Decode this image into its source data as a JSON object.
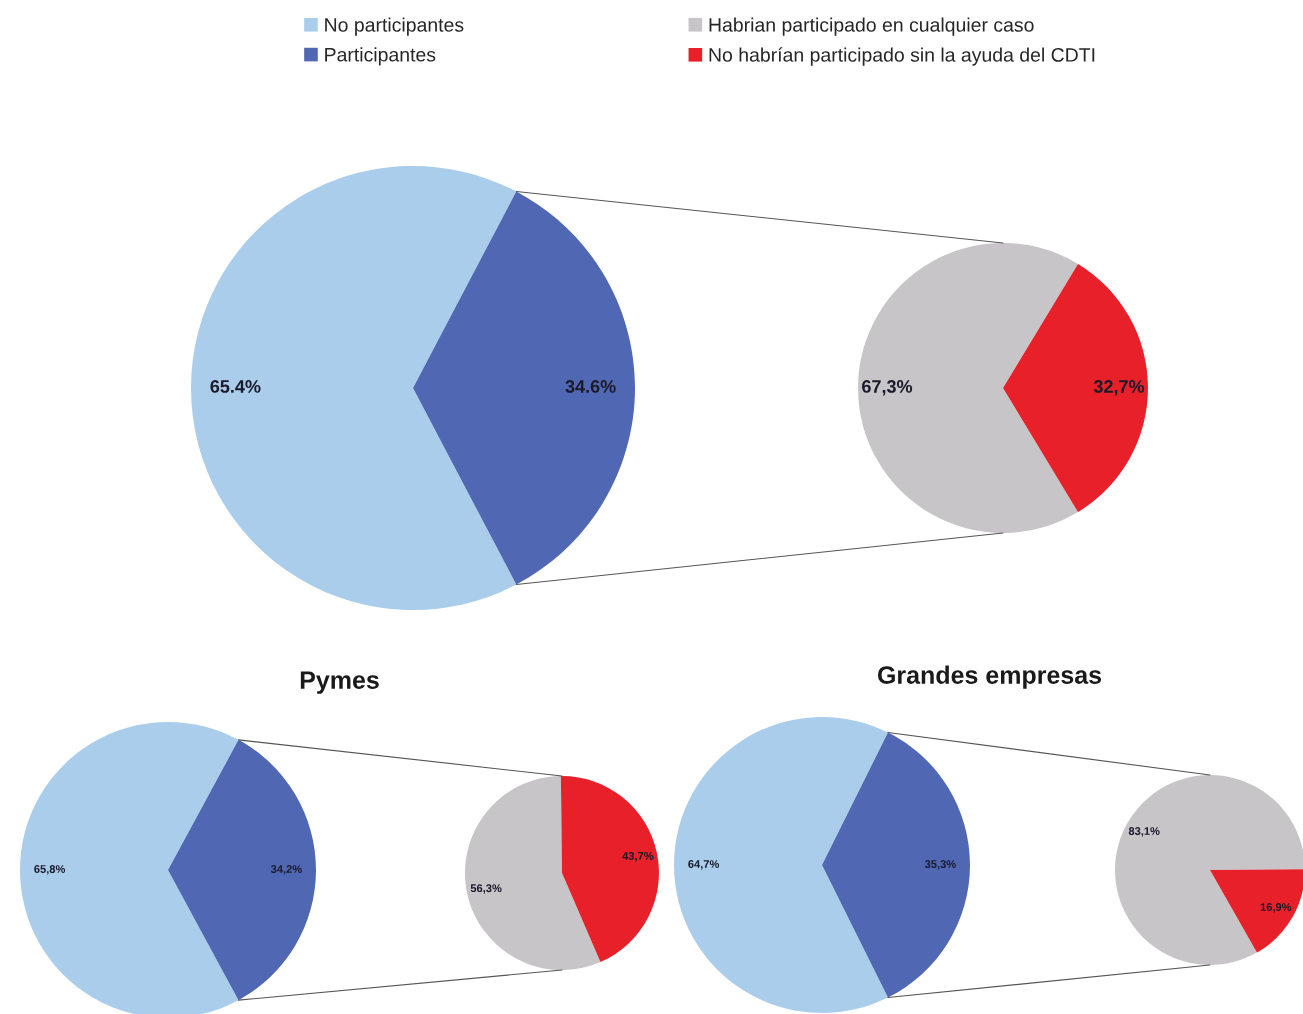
{
  "chart_data": [
    {
      "type": "pie",
      "categories": [
        "No participantes",
        "Participantes"
      ],
      "values": [
        65.4,
        34.6
      ],
      "colors": [
        "#a9cdeb",
        "#5068b4"
      ],
      "value_labels": [
        "65.4%",
        "34.6%"
      ],
      "legend": "top"
    },
    {
      "type": "pie",
      "categories": [
        "Habrian participado en cualquier caso",
        "No habrían participado sin la ayuda del CDTI"
      ],
      "values": [
        67.3,
        32.7
      ],
      "colors": [
        "#c8c5c8",
        "#e8202a"
      ],
      "value_labels": [
        "67,3%",
        "32,7%"
      ],
      "legend": "top"
    },
    {
      "type": "pie",
      "title": "Pymes",
      "categories": [
        null,
        null
      ],
      "values": [
        65.8,
        34.2
      ],
      "colors": [
        "#a9cdeb",
        "#5068b4"
      ],
      "value_labels": [
        "65,8%",
        "34,2%"
      ]
    },
    {
      "type": "pie",
      "categories": [
        null,
        null
      ],
      "values": [
        56.3,
        43.7
      ],
      "colors": [
        "#c8c5c8",
        "#e8202a"
      ],
      "value_labels": [
        "56,3%",
        "43,7%"
      ]
    },
    {
      "type": "pie",
      "title": "Grandes empresas",
      "categories": [
        null,
        null
      ],
      "values": [
        64.7,
        35.3
      ],
      "colors": [
        "#a9cdeb",
        "#5068b4"
      ],
      "value_labels": [
        "64,7%",
        "35,3%"
      ]
    },
    {
      "type": "pie",
      "categories": [
        null,
        null
      ],
      "values": [
        83.1,
        16.9
      ],
      "colors": [
        "#c8c5c8",
        "#e8202a"
      ],
      "value_labels": [
        "83,1%",
        "16,9%"
      ]
    }
  ]
}
